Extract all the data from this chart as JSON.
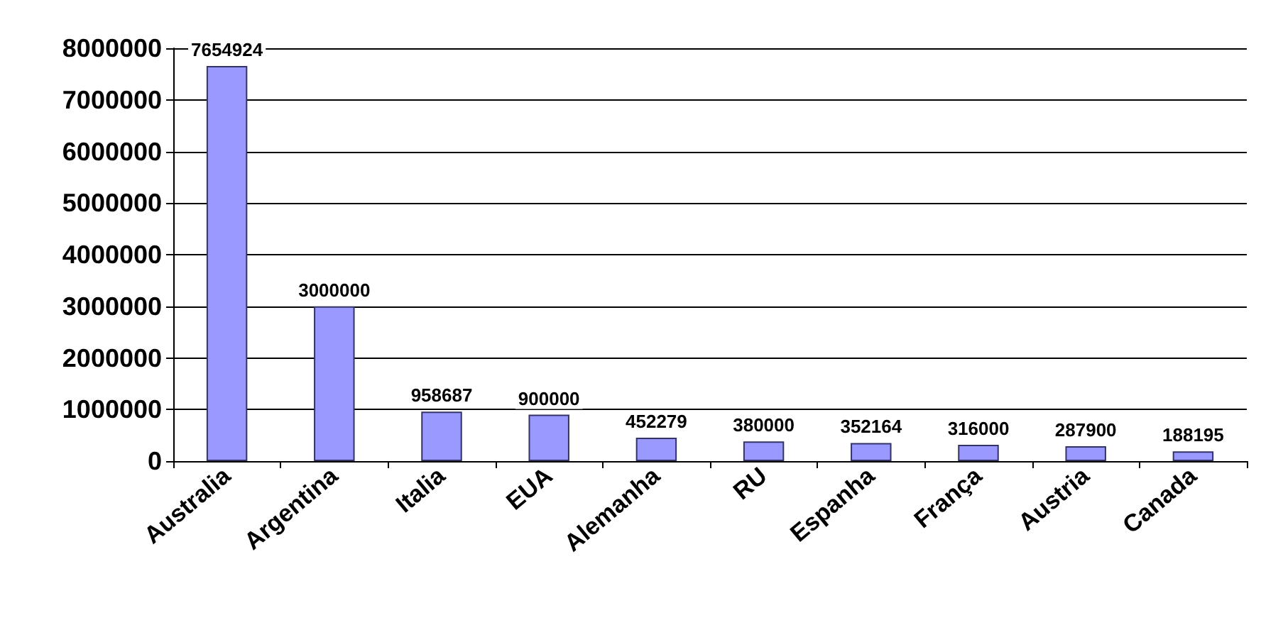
{
  "chart_data": {
    "type": "bar",
    "categories": [
      "Australia",
      "Argentina",
      "Italia",
      "EUA",
      "Alemanha",
      "RU",
      "Espanha",
      "França",
      "Austria",
      "Canada"
    ],
    "values": [
      7654924,
      3000000,
      958687,
      900000,
      452279,
      380000,
      352164,
      316000,
      287900,
      188195
    ],
    "color": "#9999ff",
    "ylim": [
      0,
      8000000
    ],
    "yticks": [
      0,
      1000000,
      2000000,
      3000000,
      4000000,
      5000000,
      6000000,
      7000000,
      8000000
    ],
    "grid": "y",
    "data_labels": true
  }
}
